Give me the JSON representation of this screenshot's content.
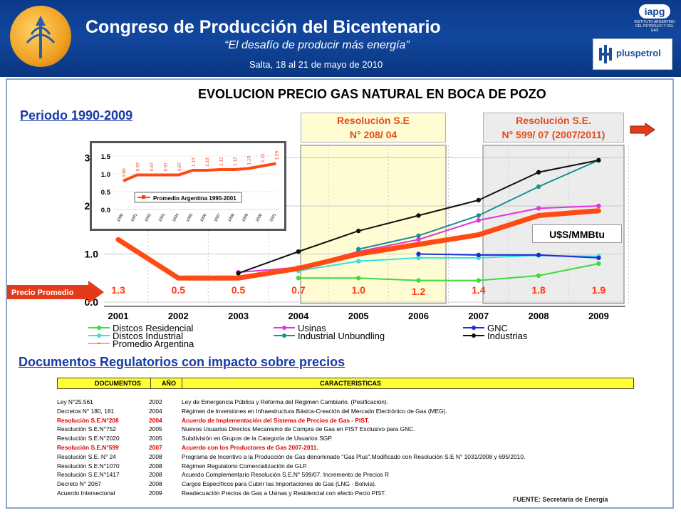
{
  "banner": {
    "title": "Congreso de Producción del Bicentenario",
    "subtitle": "“El desafío de producir más energía”",
    "date": "Salta, 18 al 21 de mayo de 2010",
    "iapg_label": "iapg",
    "iapg_text": "INSTITUTO ARGENTINO DEL PETRÓLEO Y DEL GAS",
    "sponsor": "pluspetrol"
  },
  "main": {
    "title": "EVOLUCION PRECIO GAS NATURAL EN BOCA DE POZO",
    "periodo": "Periodo 1990-2009",
    "res1_line1": "Resolución S.E",
    "res1_line2": "N° 208/ 04",
    "res2_line1": "Resolución S.E.",
    "res2_line2": "N° 599/ 07 (2007/2011)",
    "unit": "U$S/MMBtu",
    "precio_promedio": "Precio Promedio"
  },
  "chart_data": [
    {
      "type": "line",
      "x": [
        "2001",
        "2002",
        "2003",
        "2004",
        "2005",
        "2006",
        "2007",
        "2008",
        "2009"
      ],
      "ylim": [
        0,
        3.0
      ],
      "yticks": [
        "0.0",
        "1.0",
        "2.0",
        "3.0"
      ],
      "series": [
        {
          "name": "Distcos Residencial",
          "color": "#3cdc3c",
          "values": [
            null,
            null,
            null,
            0.5,
            0.5,
            0.45,
            0.45,
            0.55,
            0.8
          ]
        },
        {
          "name": "Distcos Industrial",
          "color": "#33e0e8",
          "values": [
            null,
            null,
            null,
            0.65,
            0.85,
            0.92,
            0.92,
            0.97,
            0.95
          ]
        },
        {
          "name": "GNC",
          "color": "#1a2fd6",
          "values": [
            null,
            null,
            null,
            null,
            null,
            1.0,
            0.98,
            0.98,
            0.92
          ]
        },
        {
          "name": "Usinas",
          "color": "#e233e2",
          "values": [
            null,
            null,
            0.62,
            0.72,
            1.05,
            1.3,
            1.7,
            1.95,
            2.0
          ]
        },
        {
          "name": "Industrial Unbundling",
          "color": "#1a9090",
          "values": [
            null,
            null,
            null,
            null,
            1.1,
            1.38,
            1.8,
            2.4,
            2.95
          ]
        },
        {
          "name": "Industrias",
          "color": "#111111",
          "values": [
            null,
            null,
            0.6,
            1.05,
            1.48,
            1.8,
            2.12,
            2.7,
            2.95
          ]
        },
        {
          "name": "Promedio Argentina",
          "color": "#ff4a14",
          "values": [
            1.3,
            0.5,
            0.5,
            0.7,
            1.0,
            1.2,
            1.4,
            1.8,
            1.9
          ]
        }
      ],
      "data_labels": [
        "1.3",
        "0.5",
        "0.5",
        "0.7",
        "1.0",
        "1.2",
        "1.4",
        "1.8",
        "1.9"
      ]
    },
    {
      "type": "line",
      "x": [
        "1990",
        "1991",
        "1992",
        "1993",
        "1994",
        "1995",
        "1996",
        "1997",
        "1998",
        "1999",
        "2000",
        "2001"
      ],
      "ylim": [
        0,
        1.5
      ],
      "yticks": [
        "0.0",
        "0.5",
        "1.0",
        "1.5"
      ],
      "series": [
        {
          "name": "Promedio Argentina 1990-2001",
          "color": "#ff4a14",
          "values": [
            0.8,
            0.97,
            0.97,
            0.97,
            0.97,
            1.1,
            1.1,
            1.12,
            1.12,
            1.15,
            1.22,
            1.29
          ]
        }
      ],
      "data_labels": [
        "0.80",
        "0.97",
        "0.97",
        "0.97",
        "0.97",
        "1.10",
        "1.10",
        "1.12",
        "1.12",
        "1.15",
        "1.22",
        "1.29"
      ]
    }
  ],
  "documents": {
    "title": "Documentos Regulatorios con impacto sobre precios",
    "headers": [
      "DOCUMENTOS",
      "AÑO",
      "CARACTERISTICAS"
    ],
    "rows": [
      {
        "doc": "Ley N°25.561",
        "year": "2002",
        "desc": "Ley de Emergencia Pública y Reforma del Régimen Cambiario. (Pesificación).",
        "highlight": false
      },
      {
        "doc": "Decretos N° 180, 181",
        "year": "2004",
        "desc": "Régimen de Inversiones en Infraestructura Básica-Creación del Mercado Electrónico de Gas (MEG).",
        "highlight": false
      },
      {
        "doc": "Resolución S.E.N°208",
        "year": "2004",
        "desc": "Acuerdo de Implementación del Sistema de Precios de Gas - PIST.",
        "highlight": true
      },
      {
        "doc": "Resolución S.E.N°752",
        "year": "2005",
        "desc": "Nuevos Usuarios Directos Mecanismo de Compra de Gas en PIST Exclusivo para GNC.",
        "highlight": false
      },
      {
        "doc": "Resolución S.E.N°2020",
        "year": "2005",
        "desc": "Subdivisión en Grupos de la Categoría de Usuarios SGP.",
        "highlight": false
      },
      {
        "doc": "Resolución S.E.N°599",
        "year": "2007",
        "desc": "Acuerdo con los Productores de Gas 2007-2011.",
        "highlight": true
      },
      {
        "doc": "Resolución S.E. N° 24",
        "year": "2008",
        "desc": "Programa de Incentivo a la Producción de Gas denominado \"Gas Plus\".Modificado con Resolución S.E N° 1031/2008 y 695/2010.",
        "highlight": false
      },
      {
        "doc": "Resolución S.E.N°1070",
        "year": "2008",
        "desc": "Régimen Regulatorio Comercialización de GLP.",
        "highlight": false
      },
      {
        "doc": "Resolución S.E.N°1417",
        "year": "2008",
        "desc": "Acuerdo Complementario Resolución S.E.N° 599/07. Incremento de Precios R",
        "highlight": false
      },
      {
        "doc": "Decreto N° 2067",
        "year": "2008",
        "desc": "Cargos Específicos para Cubrir las Importaciones de Gas (LNG - Bolivia).",
        "highlight": false
      },
      {
        "doc": "Acuerdo Intersectorial",
        "year": "2009",
        "desc": "Readecuación Precios de Gas a Usinas y Residencial con efecto Pecio PIST.",
        "highlight": false
      }
    ],
    "source": "FUENTE: Secretaría de Energía"
  }
}
